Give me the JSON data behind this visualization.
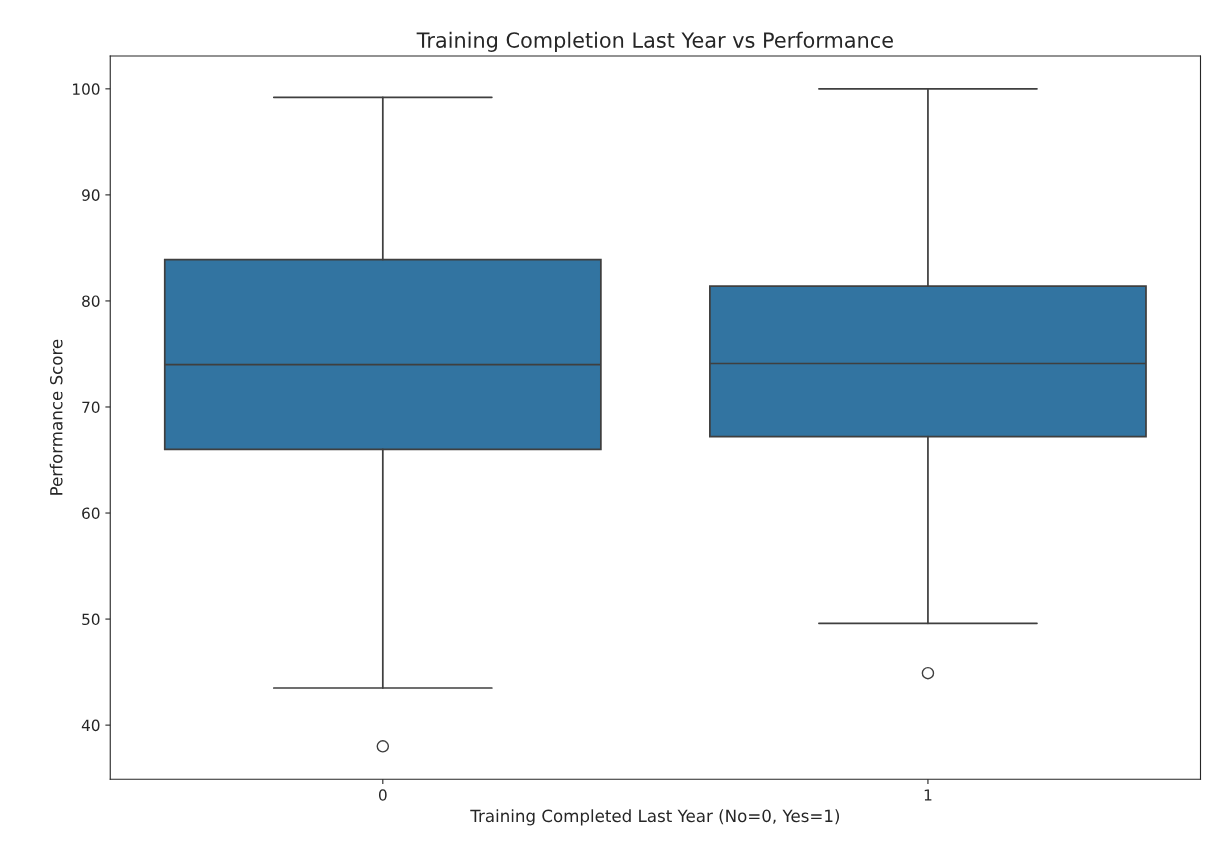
{
  "chart_data": {
    "type": "box",
    "title": "Training Completion Last Year vs Performance",
    "xlabel": "Training Completed Last Year (No=0, Yes=1)",
    "ylabel": "Performance Score",
    "categories": [
      "0",
      "1"
    ],
    "boxes": [
      {
        "low": 43.5,
        "q1": 66.0,
        "median": 74.0,
        "q3": 83.9,
        "high": 99.2,
        "outliers": [
          38.0
        ]
      },
      {
        "low": 49.6,
        "q1": 67.2,
        "median": 74.1,
        "q3": 81.4,
        "high": 100.0,
        "outliers": [
          44.9
        ]
      }
    ],
    "color": "#3274a1",
    "ylim": [
      34.9,
      103.1
    ],
    "yticks": [
      40,
      50,
      60,
      70,
      80,
      90,
      100
    ],
    "grid": false
  }
}
